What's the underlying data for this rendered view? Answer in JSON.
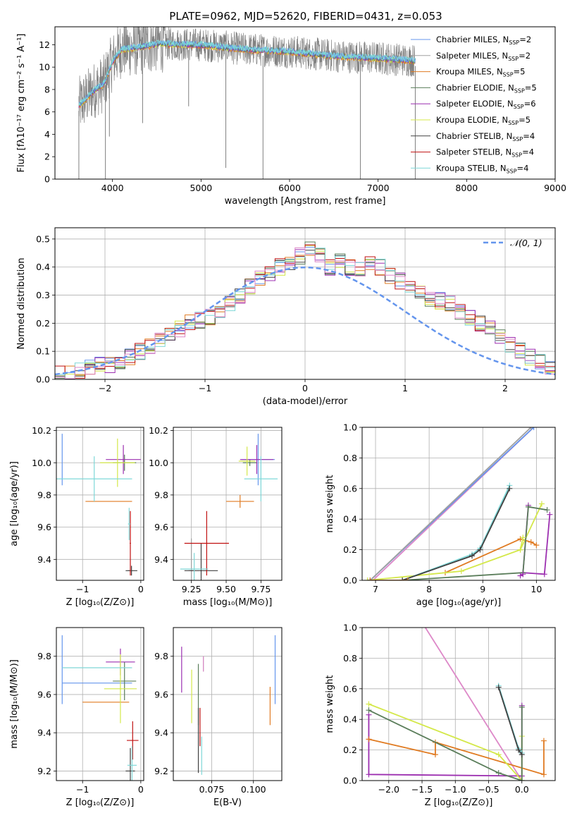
{
  "figure": {
    "title": "PLATE=0962, MJD=52620, FIBERID=0431, z=0.053"
  },
  "series": [
    {
      "name": "Chabrier MILES",
      "nssp": "2",
      "color": "#6495ed"
    },
    {
      "name": "Salpeter MILES",
      "nssp": "2",
      "color": "#a0a0a0"
    },
    {
      "name": "Kroupa MILES",
      "nssp": "5",
      "color": "#e07b22"
    },
    {
      "name": "Chabrier ELODIE",
      "nssp": "5",
      "color": "#5a7d5a"
    },
    {
      "name": "Salpeter ELODIE",
      "nssp": "6",
      "color": "#9c2fb0"
    },
    {
      "name": "Kroupa ELODIE",
      "nssp": "5",
      "color": "#d4e84a"
    },
    {
      "name": "Chabrier STELIB",
      "nssp": "4",
      "color": "#404040"
    },
    {
      "name": "Salpeter STELIB",
      "nssp": "4",
      "color": "#c01010"
    },
    {
      "name": "Kroupa STELIB",
      "nssp": "4",
      "color": "#7fd8d8"
    }
  ],
  "chart_data": [
    {
      "id": "spectrum",
      "type": "line",
      "xlabel": "wavelength [Angstrom, rest frame]",
      "ylabel": "Flux [fλ10⁻¹⁷ erg cm⁻² s⁻¹ A⁻¹]",
      "xlim": [
        3350,
        9000
      ],
      "ylim": [
        0,
        13.6
      ],
      "xticks": [
        4000,
        5000,
        6000,
        7000,
        8000,
        9000
      ],
      "yticks": [
        0,
        2,
        4,
        6,
        8,
        10,
        12
      ],
      "data_color": "#808080",
      "data_range": [
        3620,
        7420
      ],
      "model_color": "#7fd8d8",
      "absorption_lines": [
        {
          "x": 3620,
          "depth": 0
        },
        {
          "x": 3920,
          "depth": 0
        },
        {
          "x": 3965,
          "depth": 3.8
        },
        {
          "x": 4340,
          "depth": 5
        },
        {
          "x": 4860,
          "depth": 6.5
        },
        {
          "x": 5280,
          "depth": 1
        },
        {
          "x": 5700,
          "depth": 0
        },
        {
          "x": 6800,
          "depth": 0
        },
        {
          "x": 7420,
          "depth": 0
        }
      ],
      "continuum": [
        {
          "x": 3620,
          "y": 6.6
        },
        {
          "x": 3700,
          "y": 7.2
        },
        {
          "x": 3800,
          "y": 8.0
        },
        {
          "x": 3900,
          "y": 8.5
        },
        {
          "x": 4000,
          "y": 10.5
        },
        {
          "x": 4100,
          "y": 11.6
        },
        {
          "x": 4300,
          "y": 11.8
        },
        {
          "x": 4500,
          "y": 12.1
        },
        {
          "x": 5000,
          "y": 12.0
        },
        {
          "x": 5500,
          "y": 11.6
        },
        {
          "x": 6000,
          "y": 11.4
        },
        {
          "x": 6500,
          "y": 11.0
        },
        {
          "x": 7000,
          "y": 10.8
        },
        {
          "x": 7420,
          "y": 10.6
        }
      ]
    },
    {
      "id": "residuals",
      "type": "histogram",
      "xlabel": "(data-model)/error",
      "ylabel": "Normed distribution",
      "xlim": [
        -2.5,
        2.5
      ],
      "ylim": [
        0,
        0.54
      ],
      "xticks": [
        -2,
        -1,
        0,
        1,
        2
      ],
      "yticks": [
        0.0,
        0.1,
        0.2,
        0.3,
        0.4,
        0.5
      ],
      "bin_width": 0.1,
      "bin_start": -2.5,
      "reference": {
        "label": "𝒩(0, 1)",
        "mean": 0,
        "sigma": 1,
        "color": "#6495ed"
      },
      "hist_base": [
        0.02,
        0.02,
        0.03,
        0.04,
        0.05,
        0.05,
        0.06,
        0.08,
        0.1,
        0.12,
        0.14,
        0.16,
        0.18,
        0.2,
        0.21,
        0.22,
        0.24,
        0.27,
        0.3,
        0.33,
        0.36,
        0.38,
        0.4,
        0.42,
        0.44,
        0.47,
        0.44,
        0.4,
        0.42,
        0.4,
        0.39,
        0.42,
        0.4,
        0.37,
        0.35,
        0.33,
        0.31,
        0.29,
        0.28,
        0.27,
        0.24,
        0.22,
        0.2,
        0.18,
        0.15,
        0.12,
        0.1,
        0.08,
        0.06,
        0.04
      ]
    },
    {
      "id": "age-vs-z",
      "type": "errorbar",
      "xlabel": "Z [log₁₀(Z/Z⊙)]",
      "ylabel": "age  [log₁₀(age/yr)]",
      "xlim": [
        -1.45,
        0.05
      ],
      "ylim": [
        9.27,
        10.22
      ],
      "xticks": [
        -1,
        0
      ],
      "yticks": [
        9.4,
        9.6,
        9.8,
        10.0,
        10.2
      ],
      "points": [
        {
          "s": 0,
          "x": -1.35,
          "y": 10.02,
          "xe": 0,
          "ye": 0.16
        },
        {
          "s": 1,
          "x": -0.2,
          "y": 9.33,
          "xe": 0.02,
          "ye": 0
        },
        {
          "s": 2,
          "x": -0.55,
          "y": 9.76,
          "xe": 0.4,
          "ye": 0
        },
        {
          "s": 3,
          "x": -0.28,
          "y": 10.0,
          "xe": 0.2,
          "ye": 0.05
        },
        {
          "s": 4,
          "x": -0.3,
          "y": 10.02,
          "xe": 0.3,
          "ye": 0.09
        },
        {
          "s": 5,
          "x": -0.4,
          "y": 10.0,
          "xe": 0.3,
          "ye": 0.15
        },
        {
          "s": 6,
          "x": -0.16,
          "y": 9.33,
          "xe": 0.1,
          "ye": 0.03
        },
        {
          "s": 7,
          "x": -0.18,
          "y": 9.5,
          "xe": 0.01,
          "ye": 0.2
        },
        {
          "s": 8,
          "x": -0.2,
          "y": 9.62,
          "xe": 0.02,
          "ye": 0.1
        },
        {
          "s": 8,
          "x": -0.8,
          "y": 9.9,
          "xe": 0.65,
          "ye": 0.14
        }
      ]
    },
    {
      "id": "age-vs-mass",
      "type": "errorbar",
      "xlabel": "mass [log₁₀(M/M⊙)]",
      "ylabel": "",
      "xlim": [
        9.12,
        9.9
      ],
      "ylim": [
        9.27,
        10.22
      ],
      "xticks": [
        9.25,
        9.5,
        9.75
      ],
      "yticks": [
        9.4,
        9.6,
        9.8,
        10.0,
        10.2
      ],
      "points": [
        {
          "s": 0,
          "x": 9.73,
          "y": 10.02,
          "xe": 0.12,
          "ye": 0.16
        },
        {
          "s": 1,
          "x": 9.25,
          "y": 9.33,
          "xe": 0.02,
          "ye": 0.2
        },
        {
          "s": 2,
          "x": 9.6,
          "y": 9.76,
          "xe": 0.1,
          "ye": 0.04
        },
        {
          "s": 3,
          "x": 9.67,
          "y": 10.0,
          "xe": 0.05,
          "ye": 0.02
        },
        {
          "s": 4,
          "x": 9.72,
          "y": 10.02,
          "xe": 0.12,
          "ye": 0.09
        },
        {
          "s": 5,
          "x": 9.65,
          "y": 10.01,
          "xe": 0.06,
          "ye": 0.09
        },
        {
          "s": 6,
          "x": 9.32,
          "y": 9.33,
          "xe": 0.12,
          "ye": 0.17
        },
        {
          "s": 7,
          "x": 9.36,
          "y": 9.5,
          "xe": 0.16,
          "ye": 0.2
        },
        {
          "s": 8,
          "x": 9.27,
          "y": 9.34,
          "xe": 0.1,
          "ye": 0.1
        },
        {
          "s": 8,
          "x": 9.75,
          "y": 9.9,
          "xe": 0.12,
          "ye": 0.14
        }
      ]
    },
    {
      "id": "massweight-vs-age",
      "type": "line",
      "xlabel": "age  [log₁₀(age/yr)]",
      "ylabel": "mass weight",
      "xlim": [
        6.75,
        10.35
      ],
      "ylim": [
        0,
        1.0
      ],
      "xticks": [
        7,
        8,
        9,
        10
      ],
      "yticks": [
        0.0,
        0.2,
        0.4,
        0.6,
        0.8,
        1.0
      ],
      "lines": [
        {
          "s": 4,
          "pts": [
            [
              9.85,
              0.49
            ],
            [
              9.75,
              0.05
            ],
            [
              10.15,
              0.04
            ],
            [
              10.25,
              0.43
            ]
          ]
        },
        {
          "s": 2,
          "pts": [
            [
              8.3,
              0.05
            ],
            [
              9.7,
              0.27
            ],
            [
              9.9,
              0.25
            ],
            [
              10.0,
              0.23
            ]
          ]
        },
        {
          "s": 5,
          "pts": [
            [
              6.85,
              0.0
            ],
            [
              8.6,
              0.06
            ],
            [
              9.7,
              0.2
            ],
            [
              10.1,
              0.5
            ]
          ]
        },
        {
          "s": 3,
          "pts": [
            [
              7.5,
              0.0
            ],
            [
              9.75,
              0.05
            ],
            [
              9.85,
              0.48
            ],
            [
              10.2,
              0.46
            ]
          ]
        },
        {
          "s": 8,
          "pts": [
            [
              7.5,
              0.0
            ],
            [
              8.8,
              0.17
            ],
            [
              8.95,
              0.21
            ],
            [
              9.5,
              0.62
            ]
          ]
        },
        {
          "s": 6,
          "pts": [
            [
              7.5,
              0.0
            ],
            [
              8.8,
              0.16
            ],
            [
              8.95,
              0.2
            ],
            [
              9.5,
              0.6
            ]
          ]
        },
        {
          "s": 0,
          "pts": [
            [
              6.9,
              0.0
            ],
            [
              9.95,
              1.0
            ]
          ]
        },
        {
          "s": 1,
          "pts": [
            [
              6.9,
              0.0
            ],
            [
              9.9,
              1.0
            ]
          ]
        },
        {
          "s": 2,
          "pts": [
            [
              6.9,
              0.0
            ],
            [
              7.6,
              0.0
            ]
          ]
        },
        {
          "s": 5,
          "pts": [
            [
              9.7,
              0.2
            ],
            [
              9.75,
              0.28
            ]
          ]
        },
        {
          "s": 4,
          "pts": [
            [
              9.7,
              0.03
            ],
            [
              9.75,
              0.04
            ]
          ]
        }
      ],
      "pink_line": {
        "color": "#dd88c8",
        "pts": [
          [
            6.95,
            0.0
          ],
          [
            9.95,
            1.0
          ]
        ]
      }
    },
    {
      "id": "mass-vs-z",
      "type": "errorbar",
      "xlabel": "Z [log₁₀(Z/Z⊙)]",
      "ylabel": "mass [log₁₀(M/M⊙)]",
      "xlim": [
        -1.45,
        0.05
      ],
      "ylim": [
        9.15,
        9.95
      ],
      "xticks": [
        -1,
        0
      ],
      "yticks": [
        9.2,
        9.4,
        9.6,
        9.8
      ],
      "points": [
        {
          "s": 0,
          "x": -1.35,
          "y": 9.73,
          "xe": 0,
          "ye": 0.18
        },
        {
          "s": 0,
          "x": -0.75,
          "y": 9.66,
          "xe": 0.6,
          "ye": 0
        },
        {
          "s": 2,
          "x": -0.6,
          "y": 9.56,
          "xe": 0.4,
          "ye": 0
        },
        {
          "s": 3,
          "x": -0.28,
          "y": 9.67,
          "xe": 0.2,
          "ye": 0.1
        },
        {
          "s": 4,
          "x": -0.35,
          "y": 9.77,
          "xe": 0.25,
          "ye": 0.07
        },
        {
          "s": 5,
          "x": -0.35,
          "y": 9.63,
          "xe": 0.28,
          "ye": 0.18
        },
        {
          "s": 6,
          "x": -0.18,
          "y": 9.2,
          "xe": 0.08,
          "ye": 0.12
        },
        {
          "s": 7,
          "x": -0.14,
          "y": 9.36,
          "xe": 0.1,
          "ye": 0.1
        },
        {
          "s": 8,
          "x": -0.15,
          "y": 9.23,
          "xe": 0.08,
          "ye": 0.1
        },
        {
          "s": 8,
          "x": -0.75,
          "y": 9.74,
          "xe": 0.6,
          "ye": 0
        }
      ]
    },
    {
      "id": "mass-vs-ebv",
      "type": "errorbar",
      "xlabel": "E(B-V)",
      "ylabel": "",
      "xlim": [
        0.052,
        0.117
      ],
      "ylim": [
        9.15,
        9.95
      ],
      "xticks": [
        0.075,
        0.1
      ],
      "yticks": [
        9.2,
        9.4,
        9.6,
        9.8
      ],
      "points": [
        {
          "s": 0,
          "x": 0.113,
          "y": 9.73,
          "xe": 0,
          "ye": 0.18
        },
        {
          "s": 2,
          "x": 0.11,
          "y": 9.54,
          "xe": 0,
          "ye": 0.1
        },
        {
          "s": 3,
          "x": 0.067,
          "y": 9.6,
          "xe": 0,
          "ye": 0.16
        },
        {
          "s": 4,
          "x": 0.057,
          "y": 9.73,
          "xe": 0,
          "ye": 0.12
        },
        {
          "s": 5,
          "x": 0.063,
          "y": 9.59,
          "xe": 0,
          "ye": 0.14
        },
        {
          "s": 6,
          "x": 0.067,
          "y": 9.36,
          "xe": 0,
          "ye": 0.17
        },
        {
          "s": 7,
          "x": 0.068,
          "y": 9.43,
          "xe": 0,
          "ye": 0.1
        },
        {
          "s": 8,
          "x": 0.069,
          "y": 9.28,
          "xe": 0,
          "ye": 0.1
        },
        {
          "s": 1,
          "x": 0.07,
          "y": 9.76,
          "xe": 0,
          "ye": 0.04
        }
      ],
      "pink_point": {
        "x": 0.07,
        "y": 9.76,
        "ye": 0.04,
        "color": "#dd88c8"
      }
    },
    {
      "id": "massweight-vs-z",
      "type": "line",
      "xlabel": "Z [log₁₀(Z/Z⊙)]",
      "ylabel": "mass weight",
      "xlim": [
        -2.4,
        0.5
      ],
      "ylim": [
        0,
        1.0
      ],
      "xticks": [
        -2.0,
        -1.5,
        -1.0,
        -0.5,
        0.0
      ],
      "yticks": [
        0.0,
        0.2,
        0.4,
        0.6,
        0.8,
        1.0
      ],
      "lines": [
        {
          "s": 4,
          "pts": [
            [
              -2.3,
              0.43
            ],
            [
              -2.3,
              0.04
            ],
            [
              0.0,
              0.03
            ],
            [
              0.0,
              0.49
            ]
          ]
        },
        {
          "s": 2,
          "pts": [
            [
              -2.3,
              0.27
            ],
            [
              -1.3,
              0.17
            ],
            [
              -1.3,
              0.25
            ],
            [
              0.33,
              0.04
            ],
            [
              0.33,
              0.26
            ]
          ]
        },
        {
          "s": 5,
          "pts": [
            [
              -2.3,
              0.5
            ],
            [
              -0.35,
              0.17
            ],
            [
              0.0,
              0.0
            ],
            [
              0.0,
              0.29
            ]
          ]
        },
        {
          "s": 3,
          "pts": [
            [
              -2.3,
              0.46
            ],
            [
              -0.35,
              0.05
            ],
            [
              0.0,
              0.0
            ],
            [
              0.0,
              0.48
            ]
          ]
        },
        {
          "s": 8,
          "pts": [
            [
              -0.35,
              0.62
            ],
            [
              -0.05,
              0.21
            ],
            [
              0.0,
              0.18
            ]
          ]
        },
        {
          "s": 6,
          "pts": [
            [
              -0.35,
              0.61
            ],
            [
              -0.05,
              0.2
            ],
            [
              0.0,
              0.17
            ]
          ]
        }
      ],
      "pink_line": {
        "color": "#dd88c8",
        "pts": [
          [
            -1.45,
            1.0
          ],
          [
            0.0,
            0.0
          ]
        ]
      }
    }
  ]
}
